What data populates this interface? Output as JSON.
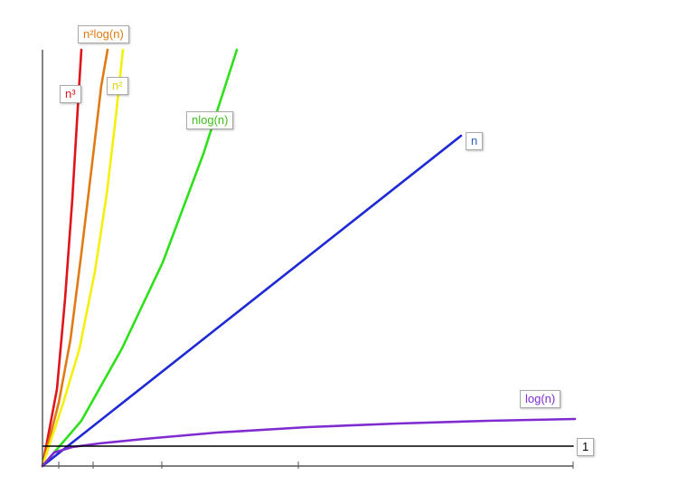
{
  "chart_data": {
    "type": "line",
    "title": "",
    "xlabel": "",
    "ylabel": "",
    "x_range": [
      0,
      10
    ],
    "y_range": [
      0,
      10
    ],
    "grid": false,
    "series": [
      {
        "name": "n³",
        "color": "#e0141b",
        "function": "n^3"
      },
      {
        "name": "n²log(n)",
        "color": "#e07a14",
        "function": "n^2*log(n)"
      },
      {
        "name": "n²",
        "color": "#f5f00a",
        "function": "n^2"
      },
      {
        "name": "nlog(n)",
        "color": "#2ee019",
        "function": "n*log(n)"
      },
      {
        "name": "n",
        "color": "#1f2ad6",
        "function": "n"
      },
      {
        "name": "log(n)",
        "color": "#7f2bd0",
        "function": "log(n)"
      },
      {
        "name": "1",
        "color": "#000000",
        "function": "1"
      }
    ]
  }
}
